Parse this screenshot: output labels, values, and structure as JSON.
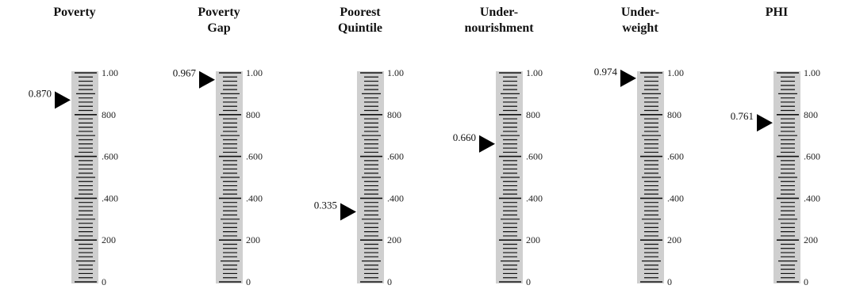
{
  "chart_data": {
    "type": "gauge",
    "scale_range": [
      0,
      1
    ],
    "tick_labels": [
      "1.00",
      "800",
      ".600",
      ".400",
      "200",
      "0"
    ],
    "gauges": [
      {
        "title_lines": [
          "Poverty"
        ],
        "value": 0.87,
        "value_label": "0.870"
      },
      {
        "title_lines": [
          "Poverty",
          "Gap"
        ],
        "value": 0.967,
        "value_label": "0.967"
      },
      {
        "title_lines": [
          "Poorest",
          "Quintile"
        ],
        "value": 0.335,
        "value_label": "0.335"
      },
      {
        "title_lines": [
          "Under-",
          "nourishment"
        ],
        "value": 0.66,
        "value_label": "0.660"
      },
      {
        "title_lines": [
          "Under-",
          "weight"
        ],
        "value": 0.974,
        "value_label": "0.974"
      },
      {
        "title_lines": [
          "PHI"
        ],
        "value": 0.761,
        "value_label": "0.761"
      }
    ]
  },
  "colors": {
    "scale_bar": "#cfcfcf",
    "tick": "#111111",
    "marker": "#000000"
  }
}
